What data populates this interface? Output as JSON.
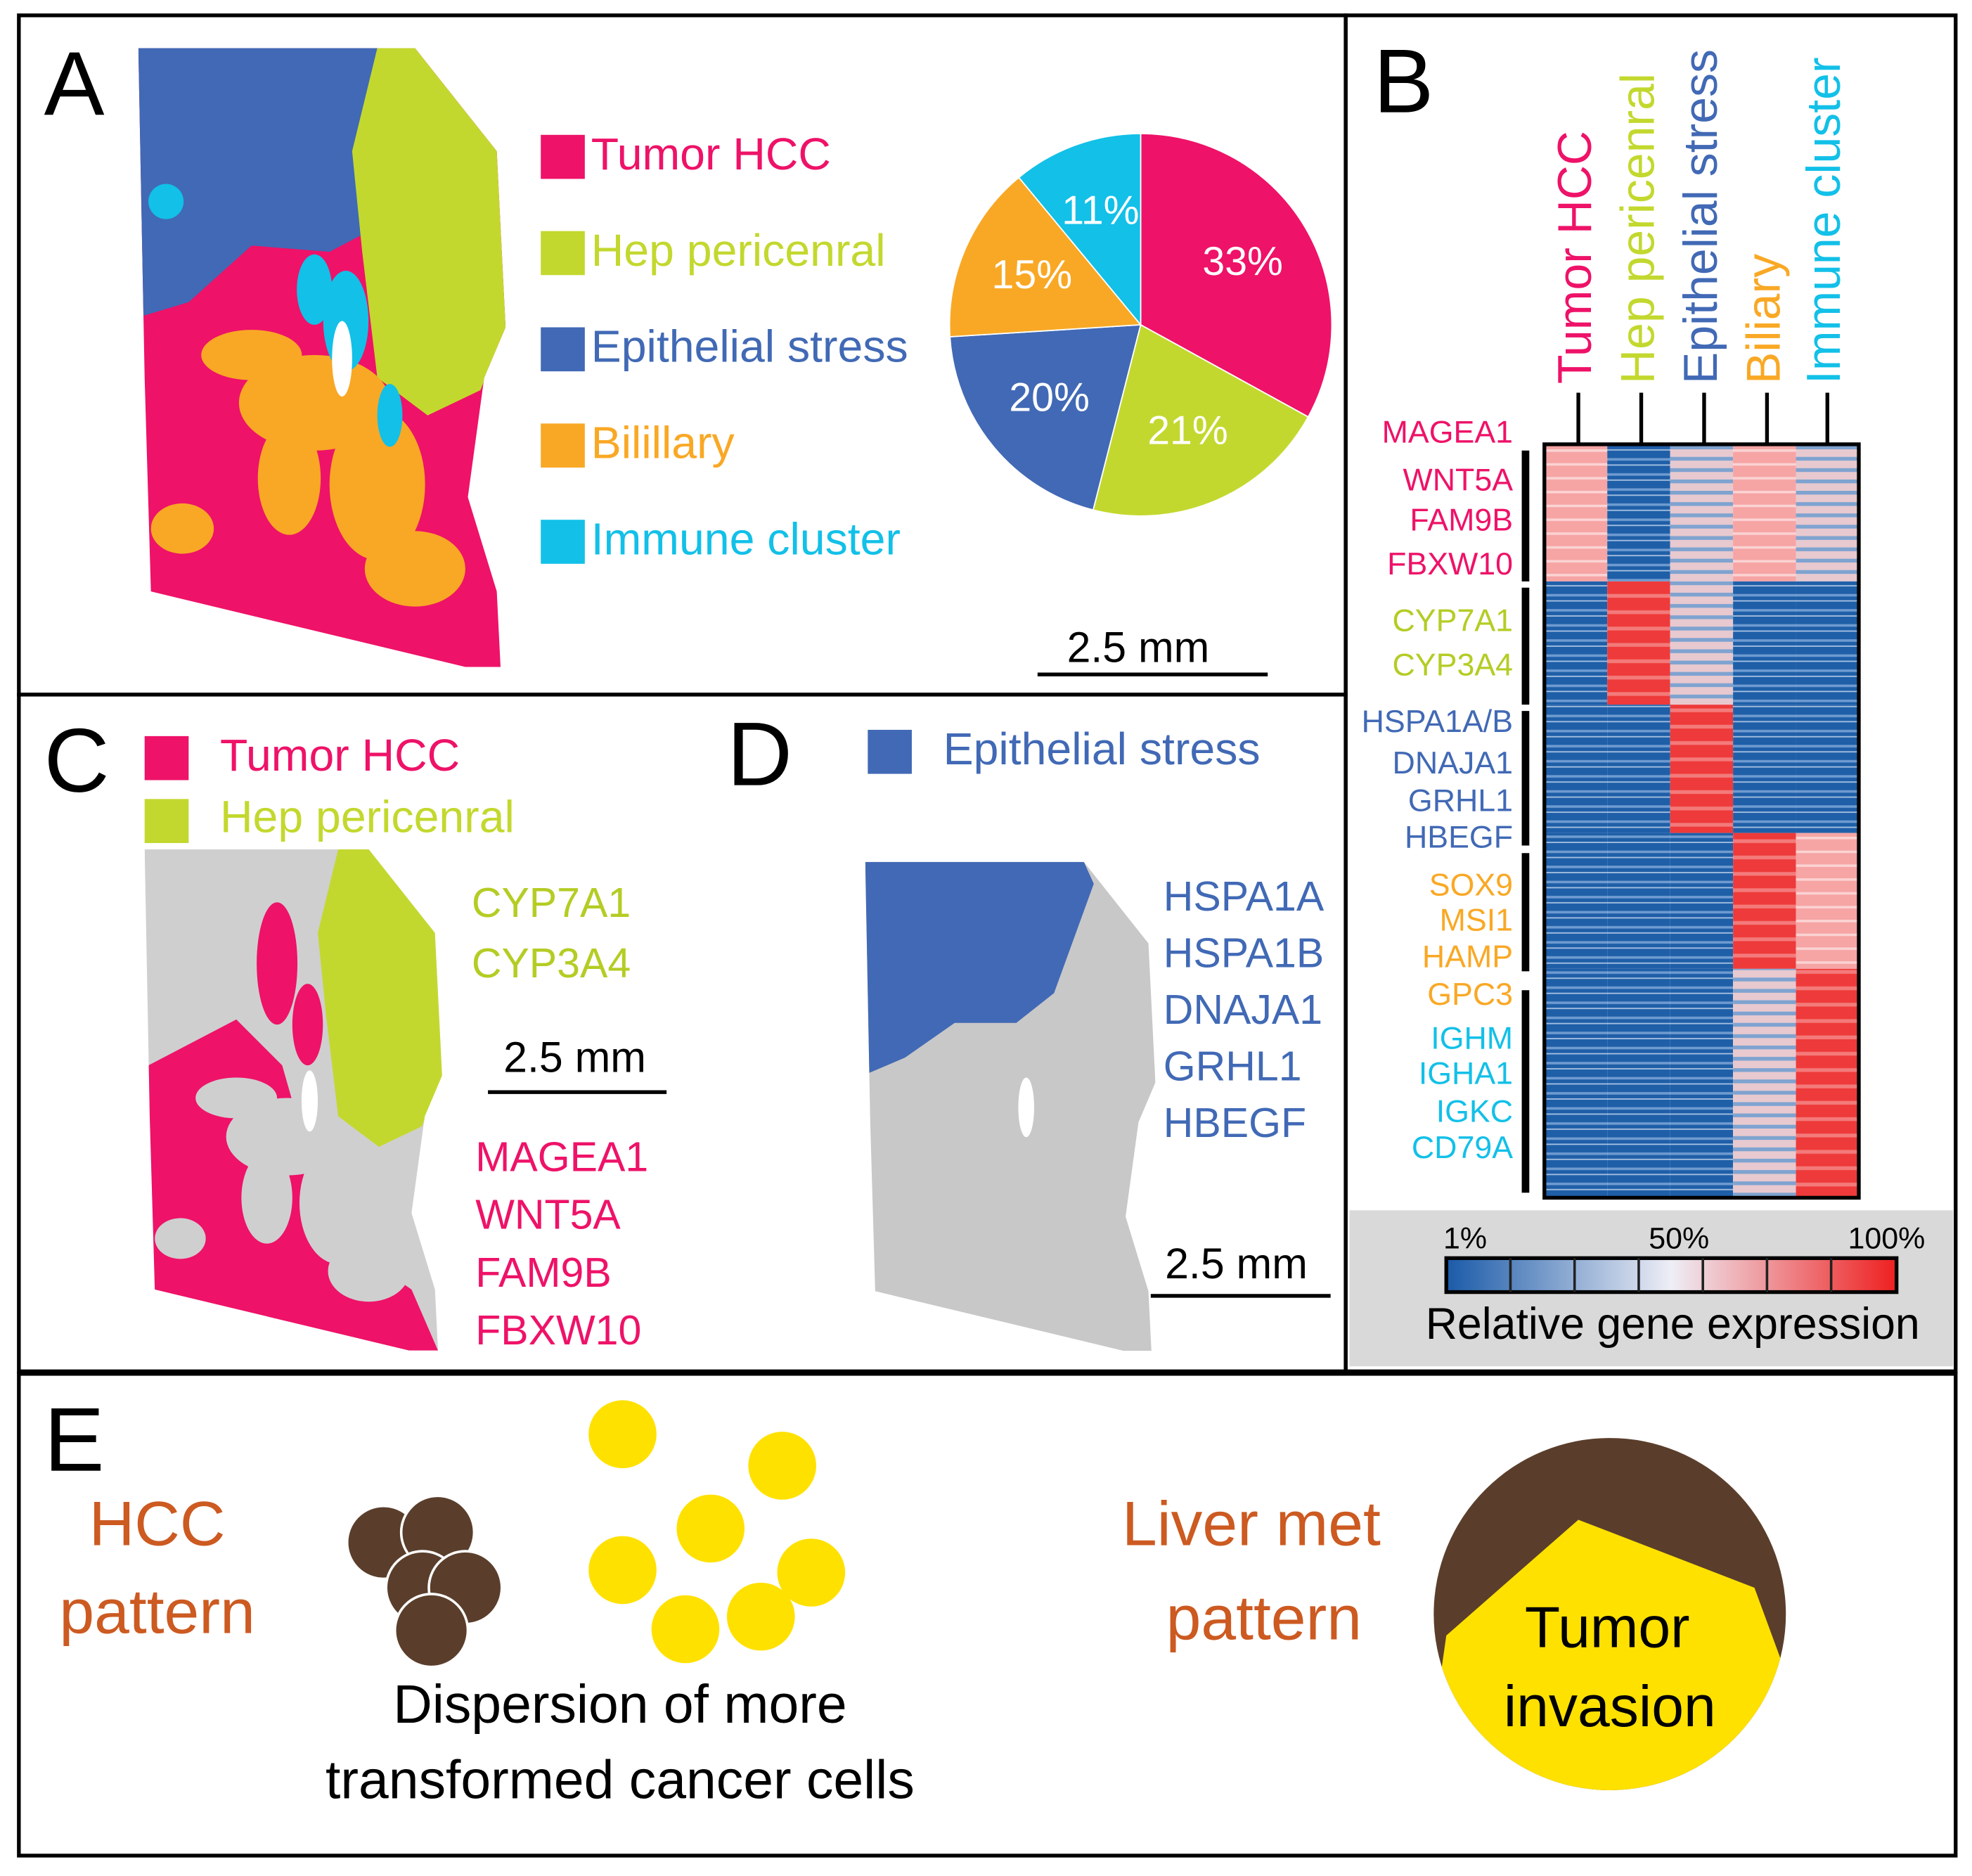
{
  "chart_data": {
    "type": "pie",
    "categories": [
      "Tumor HCC",
      "Hep pericenral",
      "Epithelial stress",
      "Bilillary",
      "Immune cluster"
    ],
    "values": [
      33,
      21,
      20,
      15,
      11
    ],
    "value_labels": [
      "33%",
      "21%",
      "20%",
      "15%",
      "11%"
    ],
    "colors": [
      "#ee1268",
      "#c3d82e",
      "#4169b5",
      "#f9a825",
      "#12c0e8"
    ]
  },
  "panels": {
    "A": {
      "label": "A",
      "scale_bar": "2.5 mm"
    },
    "B": {
      "label": "B",
      "columns": [
        "Tumor HCC",
        "Hep pericenral",
        "Epithelial stress",
        "Biliary",
        "Immune cluster"
      ],
      "gene_groups": [
        {
          "color": "#ee1268",
          "genes": [
            "MAGEA1",
            "WNT5A",
            "FAM9B",
            "FBXW10"
          ]
        },
        {
          "color": "#b5cc24",
          "genes": [
            "CYP7A1",
            "CYP3A4"
          ]
        },
        {
          "color": "#4169b5",
          "genes": [
            "HSPA1A/B",
            "DNAJA1",
            "GRHL1",
            "HBEGF"
          ]
        },
        {
          "color": "#f9a825",
          "genes": [
            "SOX9",
            "MSI1",
            "HAMP",
            "GPC3"
          ]
        },
        {
          "color": "#12c0e8",
          "genes": [
            "IGHM",
            "IGHA1",
            "IGKC",
            "CD79A"
          ]
        }
      ],
      "colorbar_ticks": [
        "1%",
        "50%",
        "100%"
      ],
      "colorbar_title": "Relative gene expression"
    },
    "C": {
      "label": "C",
      "legend": [
        "Tumor HCC",
        "Hep pericenral"
      ],
      "genes_green": [
        "CYP7A1",
        "CYP3A4"
      ],
      "genes_pink": [
        "MAGEA1",
        "WNT5A",
        "FAM9B",
        "FBXW10"
      ],
      "scale_bar": "2.5 mm"
    },
    "D": {
      "label": "D",
      "legend": "Epithelial stress",
      "genes": [
        "HSPA1A",
        "HSPA1B",
        "DNAJA1",
        "GRHL1",
        "HBEGF"
      ],
      "scale_bar": "2.5 mm"
    },
    "E": {
      "label": "E",
      "left_title": [
        "HCC",
        "pattern"
      ],
      "left_caption": [
        "Dispersion of more",
        "transformed cancer cells"
      ],
      "right_title": [
        "Liver met",
        "pattern"
      ],
      "right_caption": [
        "Tumor",
        "invasion"
      ]
    }
  }
}
